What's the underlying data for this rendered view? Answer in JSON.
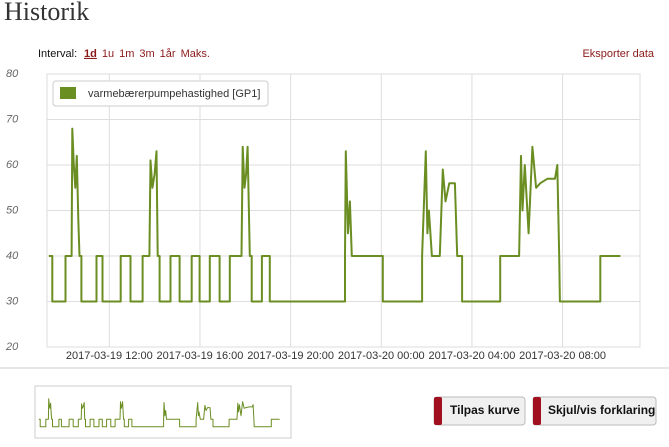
{
  "header": {
    "title": "Historik",
    "interval_label": "Interval:",
    "intervals": [
      "1d",
      "1u",
      "1m",
      "3m",
      "1år",
      "Maks."
    ],
    "export": "Eksporter data"
  },
  "buttons": [
    "Tilpas kurve",
    "Skjul/vis forklaring"
  ],
  "chart_data": {
    "type": "line",
    "grid": true,
    "legend": "top-left",
    "x": [
      "2017-03-19 09:20",
      "2017-03-19 09:29",
      "2017-03-19 09:29",
      "2017-03-19 10:04",
      "2017-03-19 10:04",
      "2017-03-19 10:20",
      "2017-03-19 10:22",
      "2017-03-19 10:26",
      "2017-03-19 10:30",
      "2017-03-19 10:34",
      "2017-03-19 10:38",
      "2017-03-19 10:41",
      "2017-03-19 10:46",
      "2017-03-19 10:46",
      "2017-03-19 11:26",
      "2017-03-19 11:26",
      "2017-03-19 11:42",
      "2017-03-19 11:42",
      "2017-03-19 12:30",
      "2017-03-19 12:30",
      "2017-03-19 12:56",
      "2017-03-19 12:56",
      "2017-03-19 13:28",
      "2017-03-19 13:28",
      "2017-03-19 13:46",
      "2017-03-19 13:49",
      "2017-03-19 13:54",
      "2017-03-19 14:00",
      "2017-03-19 14:05",
      "2017-03-19 14:08",
      "2017-03-19 14:13",
      "2017-03-19 14:13",
      "2017-03-19 14:42",
      "2017-03-19 14:42",
      "2017-03-19 15:06",
      "2017-03-19 15:06",
      "2017-03-19 15:38",
      "2017-03-19 15:38",
      "2017-03-19 15:59",
      "2017-03-19 15:59",
      "2017-03-19 16:26",
      "2017-03-19 16:26",
      "2017-03-19 16:52",
      "2017-03-19 16:52",
      "2017-03-19 17:19",
      "2017-03-19 17:19",
      "2017-03-19 17:50",
      "2017-03-19 17:53",
      "2017-03-19 17:58",
      "2017-03-19 18:02",
      "2017-03-19 18:06",
      "2017-03-19 18:12",
      "2017-03-19 18:17",
      "2017-03-19 18:17",
      "2017-03-19 18:44",
      "2017-03-19 18:44",
      "2017-03-19 19:05",
      "2017-03-19 19:05",
      "2017-03-19 22:24",
      "2017-03-19 22:24",
      "2017-03-19 22:26",
      "2017-03-19 22:32",
      "2017-03-19 22:37",
      "2017-03-19 22:42",
      "2017-03-20 00:04",
      "2017-03-20 00:04",
      "2017-03-20 01:48",
      "2017-03-20 01:48",
      "2017-03-20 01:58",
      "2017-03-20 02:02",
      "2017-03-20 02:06",
      "2017-03-20 02:14",
      "2017-03-20 02:35",
      "2017-03-20 02:43",
      "2017-03-20 02:50",
      "2017-03-20 03:00",
      "2017-03-20 03:15",
      "2017-03-20 03:21",
      "2017-03-20 03:34",
      "2017-03-20 03:34",
      "2017-03-20 05:15",
      "2017-03-20 05:15",
      "2017-03-20 06:05",
      "2017-03-20 06:10",
      "2017-03-20 06:14",
      "2017-03-20 06:20",
      "2017-03-20 06:30",
      "2017-03-20 06:40",
      "2017-03-20 06:50",
      "2017-03-20 07:01",
      "2017-03-20 07:20",
      "2017-03-20 07:40",
      "2017-03-20 07:46",
      "2017-03-20 07:51",
      "2017-03-20 07:53",
      "2017-03-20 09:40",
      "2017-03-20 09:40",
      "2017-03-20 10:33"
    ],
    "series": [
      {
        "name": "varmebærerpumpehastighed [GP1]",
        "color": "#6b8e23",
        "values": [
          40,
          40,
          30,
          30,
          40,
          40,
          68,
          60,
          55,
          62,
          48,
          40,
          40,
          30,
          30,
          40,
          40,
          30,
          30,
          40,
          40,
          30,
          30,
          40,
          40,
          61,
          55,
          58,
          63,
          40,
          40,
          30,
          30,
          40,
          40,
          30,
          30,
          40,
          40,
          30,
          30,
          40,
          40,
          30,
          30,
          40,
          40,
          64,
          55,
          58,
          64,
          40,
          40,
          30,
          30,
          40,
          40,
          30,
          30,
          40,
          63,
          45,
          52,
          40,
          40,
          30,
          30,
          40,
          63,
          45,
          50,
          40,
          40,
          59,
          52,
          56,
          56,
          40,
          40,
          30,
          30,
          40,
          40,
          62,
          50,
          60,
          45,
          64,
          55,
          56,
          57,
          57,
          60,
          40,
          30,
          30,
          40,
          40
        ]
      }
    ],
    "xlim": [
      "2017-03-19 09:15",
      "2017-03-20 11:25"
    ],
    "xticks": [
      "2017-03-19 12:00",
      "2017-03-19 16:00",
      "2017-03-19 20:00",
      "2017-03-20 00:00",
      "2017-03-20 04:00",
      "2017-03-20 08:00"
    ],
    "ylim": [
      20,
      80
    ],
    "yticks": [
      20,
      30,
      40,
      50,
      60,
      70,
      80
    ]
  }
}
